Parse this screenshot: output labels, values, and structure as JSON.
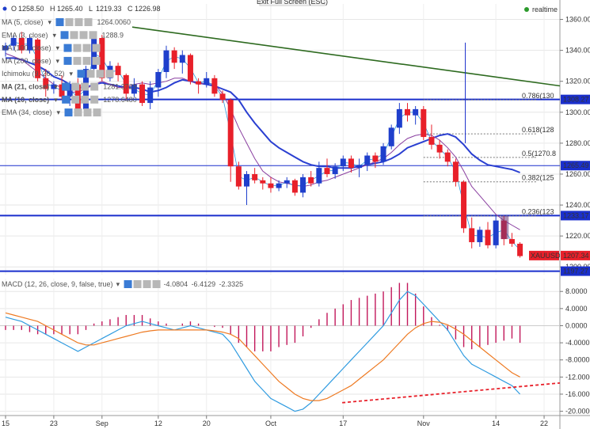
{
  "header": {
    "ohlc": {
      "o": "1258.50",
      "h": "1265.40",
      "l": "1219.33",
      "c": "1226.98"
    },
    "ohlc_labels": {
      "o": "O",
      "h": "H",
      "l": "L",
      "c": "C"
    },
    "exit_fullscreen": "Exit Full Screen (ESC)",
    "realtime": "realtime"
  },
  "indicators": [
    {
      "label": "MA (5, close)",
      "value": "1264.0060",
      "color": "#1f3fcc"
    },
    {
      "label": "EMA (3, close)",
      "value": "1288.9",
      "color": "#1f3fcc"
    },
    {
      "label": "MA (100, close)",
      "value": "",
      "color": "#1f3fcc"
    },
    {
      "label": "MA (200, close)",
      "value": "",
      "color": "#1f3fcc"
    },
    {
      "label": "Ichimoku (9, 26, 52)",
      "value": "",
      "color": "#1f3fcc"
    },
    {
      "label": "MA (21, close)",
      "value": "1281.3729",
      "color": "#1f3fcc"
    },
    {
      "label": "MA (10, close)",
      "value": "1278.6480",
      "color": "#1f3fcc"
    },
    {
      "label": "EMA (34, close)",
      "value": "",
      "color": "#1f3fcc"
    }
  ],
  "macd_legend": {
    "label": "MACD (12, 26, close, 9, false, true)",
    "v1": "-4.0804",
    "v2": "-6.4129",
    "v3": "-2.3325"
  },
  "fib_labels": [
    "0.786(130",
    "0.618(128",
    "0.5(1270.8",
    "0.382(125",
    "0.236(123"
  ],
  "price_tags": {
    "hline_upper": "1308.27",
    "hline_mid": "1265.49",
    "hline_low": "1233.17",
    "hline_bottom": "1197.27",
    "symbol": "XAUUSD",
    "last": "1207.34"
  },
  "colors": {
    "up": "#1f3fcc",
    "down": "#e8202a",
    "trendline": "#2d6a1f",
    "ma_blue": "#2a3fd1",
    "ma_purple": "#8a3fa0",
    "macd_line": "#2f9be0",
    "signal_line": "#ee7a22",
    "hist": "#c2185b",
    "macd_trend": "#e8202a",
    "hline": "#1a2fcc"
  },
  "chart_data": [
    {
      "type": "candlestick",
      "symbol": "XAUUSD",
      "y_axis_ticks": [
        1200,
        1220,
        1240,
        1260,
        1280,
        1300,
        1320,
        1340,
        1360
      ],
      "ylim": [
        1195,
        1370
      ],
      "x_tick_labels": [
        "15",
        "23",
        "Sep",
        "12",
        "20",
        "Oct",
        "17",
        "Nov",
        "14",
        "22"
      ],
      "candles": [
        [
          1340,
          1345,
          1336,
          1343
        ],
        [
          1343,
          1350,
          1340,
          1348
        ],
        [
          1348,
          1352,
          1338,
          1340
        ],
        [
          1340,
          1350,
          1338,
          1348
        ],
        [
          1347,
          1348,
          1320,
          1322
        ],
        [
          1322,
          1328,
          1310,
          1315
        ],
        [
          1315,
          1320,
          1312,
          1318
        ],
        [
          1318,
          1324,
          1308,
          1310
        ],
        [
          1310,
          1320,
          1304,
          1318
        ],
        [
          1318,
          1322,
          1300,
          1302
        ],
        [
          1302,
          1330,
          1300,
          1328
        ],
        [
          1328,
          1352,
          1325,
          1348
        ],
        [
          1348,
          1350,
          1320,
          1322
        ],
        [
          1322,
          1333,
          1320,
          1330
        ],
        [
          1330,
          1332,
          1320,
          1324
        ],
        [
          1324,
          1325,
          1308,
          1312
        ],
        [
          1312,
          1322,
          1310,
          1318
        ],
        [
          1318,
          1320,
          1304,
          1306
        ],
        [
          1306,
          1320,
          1302,
          1316
        ],
        [
          1316,
          1328,
          1310,
          1326
        ],
        [
          1326,
          1343,
          1322,
          1340
        ],
        [
          1340,
          1342,
          1328,
          1332
        ],
        [
          1332,
          1340,
          1325,
          1337
        ],
        [
          1337,
          1338,
          1318,
          1320
        ],
        [
          1320,
          1322,
          1312,
          1318
        ],
        [
          1318,
          1326,
          1316,
          1322
        ],
        [
          1322,
          1324,
          1310,
          1312
        ],
        [
          1312,
          1314,
          1306,
          1308
        ],
        [
          1308,
          1309,
          1255,
          1265
        ],
        [
          1265,
          1268,
          1250,
          1252
        ],
        [
          1252,
          1262,
          1240,
          1260
        ],
        [
          1260,
          1264,
          1254,
          1256
        ],
        [
          1256,
          1258,
          1250,
          1254
        ],
        [
          1254,
          1258,
          1248,
          1251
        ],
        [
          1251,
          1256,
          1249,
          1254
        ],
        [
          1254,
          1258,
          1251,
          1256
        ],
        [
          1256,
          1257,
          1246,
          1248
        ],
        [
          1248,
          1260,
          1245,
          1258
        ],
        [
          1258,
          1262,
          1252,
          1254
        ],
        [
          1254,
          1268,
          1252,
          1264
        ],
        [
          1264,
          1270,
          1258,
          1260
        ],
        [
          1260,
          1267,
          1257,
          1265
        ],
        [
          1265,
          1272,
          1262,
          1270
        ],
        [
          1270,
          1272,
          1261,
          1264
        ],
        [
          1264,
          1270,
          1258,
          1266
        ],
        [
          1266,
          1274,
          1262,
          1272
        ],
        [
          1272,
          1274,
          1264,
          1268
        ],
        [
          1268,
          1280,
          1266,
          1278
        ],
        [
          1278,
          1292,
          1276,
          1290
        ],
        [
          1290,
          1306,
          1286,
          1302
        ],
        [
          1302,
          1306,
          1294,
          1298
        ],
        [
          1298,
          1304,
          1292,
          1302
        ],
        [
          1302,
          1304,
          1282,
          1284
        ],
        [
          1284,
          1292,
          1276,
          1279
        ],
        [
          1279,
          1282,
          1270,
          1274
        ],
        [
          1274,
          1276,
          1265,
          1268
        ],
        [
          1268,
          1270,
          1252,
          1255
        ],
        [
          1255,
          1256,
          1222,
          1225
        ],
        [
          1225,
          1232,
          1212,
          1216
        ],
        [
          1216,
          1226,
          1213,
          1224
        ],
        [
          1224,
          1229,
          1212,
          1214
        ],
        [
          1214,
          1233,
          1212,
          1230
        ],
        [
          1230,
          1233,
          1214,
          1218
        ],
        [
          1218,
          1222,
          1213,
          1215
        ],
        [
          1215,
          1216,
          1206,
          1207
        ]
      ],
      "horizontal_lines": [
        1308.27,
        1265.49,
        1233.17,
        1197.27
      ],
      "fibonacci_levels": [
        {
          "ratio": "0.786",
          "price": 1308
        },
        {
          "ratio": "0.618",
          "price": 1286
        },
        {
          "ratio": "0.5",
          "price": 1270.8
        },
        {
          "ratio": "0.382",
          "price": 1255
        },
        {
          "ratio": "0.236",
          "price": 1233
        }
      ],
      "trendline": {
        "from": [
          0,
          1353
        ],
        "to": [
          70,
          1315
        ]
      },
      "series": [
        {
          "name": "MA (21, close)",
          "values": [
            1335,
            1335,
            1334,
            1332,
            1330,
            1327,
            1323,
            1321,
            1318,
            1316,
            1316,
            1318,
            1319,
            1318,
            1317,
            1316,
            1316,
            1315,
            1313,
            1314,
            1316,
            1319,
            1321,
            1320,
            1319,
            1318,
            1317,
            1315,
            1313,
            1308,
            1300,
            1293,
            1287,
            1281,
            1277,
            1274,
            1271,
            1268,
            1266,
            1265,
            1265,
            1264,
            1264,
            1264,
            1265,
            1266,
            1267,
            1268,
            1270,
            1273,
            1277,
            1279,
            1281,
            1283,
            1285,
            1286,
            1284,
            1279,
            1273,
            1269,
            1266,
            1265,
            1264,
            1263,
            1261
          ]
        },
        {
          "name": "MA (10, close)",
          "values": [
            1338,
            1336,
            1334,
            1330,
            1326,
            1322,
            1318,
            1316,
            1313,
            1313,
            1315,
            1318,
            1320,
            1318,
            1316,
            1316,
            1318,
            1319,
            1318,
            1319,
            1320,
            1322,
            1322,
            1320,
            1318,
            1319,
            1318,
            1312,
            1302,
            1290,
            1280,
            1270,
            1262,
            1258,
            1255,
            1254,
            1253,
            1252,
            1253,
            1255,
            1256,
            1258,
            1260,
            1262,
            1264,
            1266,
            1268,
            1270,
            1274,
            1279,
            1283,
            1285,
            1286,
            1285,
            1282,
            1277,
            1271,
            1262,
            1252,
            1246,
            1240,
            1234,
            1230,
            1227,
            1224
          ]
        }
      ]
    },
    {
      "type": "bar+line",
      "name": "MACD (12, 26, close, 9, false, true)",
      "y_axis_ticks": [
        8,
        4,
        0,
        -4,
        -8,
        -12,
        -16,
        -20
      ],
      "ylim": [
        -21,
        11
      ],
      "series": [
        {
          "name": "MACD",
          "values": [
            2,
            1.5,
            1,
            0,
            -1,
            -2,
            -3,
            -4,
            -5,
            -6,
            -5,
            -4,
            -3,
            -2,
            -1,
            0,
            0.5,
            1,
            0.5,
            0,
            -0.5,
            -1,
            -0.5,
            0,
            -0.5,
            -1,
            -1.5,
            -2,
            -4,
            -7,
            -10,
            -13,
            -15,
            -17,
            -18,
            -19,
            -20,
            -19.5,
            -18,
            -16,
            -14,
            -12,
            -10,
            -8,
            -6,
            -4,
            -2,
            0,
            3,
            6,
            8,
            7,
            5,
            3,
            1,
            -1,
            -4,
            -7,
            -9,
            -10,
            -11,
            -12,
            -13,
            -14,
            -16
          ]
        },
        {
          "name": "Signal",
          "values": [
            3,
            2.5,
            2,
            1.5,
            1,
            0,
            -1,
            -2,
            -3,
            -4,
            -4.5,
            -4.5,
            -4,
            -3.5,
            -3,
            -2.5,
            -2,
            -1.5,
            -1.2,
            -1,
            -1,
            -1,
            -1,
            -1,
            -1,
            -1,
            -1.2,
            -1.5,
            -2,
            -3,
            -5,
            -7,
            -9,
            -11,
            -13,
            -14.5,
            -16,
            -17,
            -17.5,
            -17.5,
            -17,
            -16,
            -15,
            -14,
            -12.5,
            -11,
            -9.5,
            -8,
            -6,
            -4,
            -2,
            -0.5,
            0.5,
            1,
            0.8,
            0.2,
            -0.8,
            -2,
            -3.5,
            -5,
            -6.5,
            -8,
            -9.5,
            -11,
            -12
          ]
        },
        {
          "name": "Histogram",
          "values": [
            -1,
            -1,
            -1,
            -1.5,
            -2,
            -2,
            -2,
            -2,
            -2,
            -2,
            -1,
            0.5,
            1,
            1.5,
            2,
            2.5,
            2.5,
            2.5,
            1.7,
            1,
            0.5,
            0,
            0.5,
            1,
            0.5,
            0,
            -0.3,
            -0.5,
            -2,
            -4,
            -5,
            -6,
            -6,
            -6,
            -5,
            -4.5,
            -4,
            -2.5,
            -0.5,
            1.5,
            3,
            4,
            5,
            6,
            6.5,
            7,
            7.5,
            8,
            9,
            10,
            10,
            7.5,
            4.5,
            2,
            0.2,
            -1.2,
            -3.2,
            -5,
            -5.5,
            -5,
            -4.5,
            -4,
            -3.5,
            -3,
            -4
          ]
        }
      ],
      "trendline": {
        "from": [
          34,
          -18
        ],
        "to": [
          70,
          -14.5
        ]
      }
    }
  ]
}
